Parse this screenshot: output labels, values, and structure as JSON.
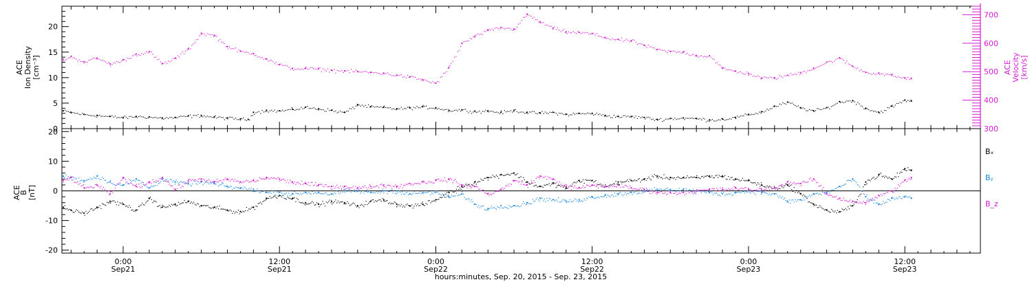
{
  "xaxis": {
    "title": "hours:minutes, Sep. 20, 2015 - Sep. 23, 2015",
    "ticks": [
      {
        "time": "0:00",
        "date": "Sep21",
        "hour": 24
      },
      {
        "time": "12:00",
        "date": "Sep21",
        "hour": 36
      },
      {
        "time": "0:00",
        "date": "Sep22",
        "hour": 48
      },
      {
        "time": "12:00",
        "date": "Sep22",
        "hour": 60
      },
      {
        "time": "0:00",
        "date": "Sep23",
        "hour": 72
      },
      {
        "time": "12:00",
        "date": "Sep23",
        "hour": 84
      }
    ],
    "range_hours": [
      19.3,
      89.8
    ]
  },
  "colors": {
    "black": "#000000",
    "magenta": "#d21ad2",
    "blue": "#1a86e0"
  },
  "chart_data": [
    {
      "type": "scatter",
      "panel": "top",
      "ylabel_left": [
        "ACE",
        "Ion Density",
        "[cm⁻³]"
      ],
      "ylabel_right": [
        "ACE",
        "Velocity",
        "[km/s]"
      ],
      "ylim_left": [
        0,
        24
      ],
      "yticks_left": [
        0,
        5,
        10,
        15,
        20
      ],
      "ylim_right": [
        300,
        730
      ],
      "yticks_right": [
        300,
        400,
        500,
        600,
        700
      ],
      "series": [
        {
          "axis": "left",
          "color": "black",
          "x": [
            19.4,
            20,
            21,
            22,
            23,
            24,
            25,
            26,
            27,
            28,
            29,
            30,
            31,
            32,
            33,
            33.6,
            34,
            35,
            36,
            37,
            38,
            39,
            40,
            41,
            42,
            43,
            44,
            45,
            46,
            47,
            48,
            49,
            50,
            51,
            52,
            53,
            54,
            55,
            56,
            57,
            58,
            59,
            60,
            61,
            62,
            63,
            64,
            65,
            66,
            67,
            68,
            69,
            70,
            71,
            72,
            73,
            74,
            75,
            76,
            77,
            78,
            79,
            80,
            81,
            82,
            83,
            84,
            84.5
          ],
          "y": [
            3.5,
            3.2,
            2.8,
            2.6,
            2.4,
            2.2,
            2.4,
            2.3,
            2.1,
            2.2,
            2.5,
            2.6,
            2.3,
            2.1,
            1.9,
            1.8,
            3.2,
            3.6,
            3.5,
            3.8,
            4.2,
            3.9,
            3.6,
            3.2,
            4.7,
            4.3,
            4.2,
            3.9,
            4.1,
            4.3,
            4.1,
            3.6,
            3.7,
            3.4,
            3.5,
            3.2,
            3.6,
            3.2,
            3.1,
            3.2,
            2.8,
            3.0,
            3.0,
            2.6,
            2.4,
            2.4,
            2.2,
            1.8,
            2.0,
            2.1,
            2.0,
            1.7,
            1.9,
            2.2,
            2.8,
            3.3,
            4.4,
            5.2,
            4.1,
            3.5,
            4.1,
            5.3,
            5.5,
            4.0,
            3.2,
            4.4,
            5.6,
            5.4
          ]
        },
        {
          "axis": "right",
          "color": "magenta",
          "x": [
            19.4,
            20,
            21,
            22,
            23,
            24,
            25,
            26,
            27,
            28,
            29,
            30,
            31,
            32,
            33,
            34,
            35,
            36,
            37,
            38,
            39,
            40,
            41,
            42,
            43,
            44,
            45,
            46,
            47,
            48,
            49,
            50,
            51,
            52,
            53,
            54,
            55,
            56,
            57,
            58,
            59,
            60,
            61,
            62,
            63,
            64,
            65,
            66,
            67,
            68,
            69,
            70,
            71,
            72,
            73,
            74,
            75,
            76,
            77,
            78,
            79,
            80,
            81,
            82,
            83,
            84,
            84.5
          ],
          "y": [
            543,
            553,
            535,
            548,
            527,
            541,
            562,
            570,
            528,
            548,
            580,
            635,
            628,
            588,
            572,
            563,
            545,
            525,
            511,
            512,
            510,
            505,
            503,
            501,
            498,
            495,
            488,
            482,
            472,
            460,
            515,
            600,
            625,
            645,
            655,
            650,
            702,
            675,
            653,
            640,
            638,
            634,
            620,
            613,
            609,
            593,
            578,
            571,
            569,
            557,
            556,
            512,
            502,
            494,
            478,
            479,
            488,
            497,
            513,
            533,
            548,
            519,
            498,
            495,
            488,
            478,
            477
          ]
        }
      ]
    },
    {
      "type": "scatter",
      "panel": "bottom",
      "ylabel_left": [
        "ACE",
        "B",
        "[nT]"
      ],
      "ylim": [
        -21,
        21
      ],
      "yticks": [
        -20,
        -10,
        0,
        10,
        20
      ],
      "zero_line": true,
      "legend": [
        "Bₓ",
        "Bᵧ",
        "B_z"
      ],
      "legend_placement": "right",
      "series": [
        {
          "name": "Bₓ",
          "color": "black",
          "x": [
            19.4,
            20,
            21,
            22,
            23,
            24,
            25,
            26,
            27,
            28,
            29,
            30,
            31,
            32,
            33,
            34,
            35,
            36,
            37,
            38,
            39,
            40,
            41,
            42,
            43,
            44,
            45,
            46,
            47,
            48,
            49,
            50,
            51,
            52,
            53,
            54,
            55,
            56,
            57,
            58,
            59,
            60,
            61,
            62,
            63,
            64,
            65,
            66,
            67,
            68,
            69,
            70,
            71,
            72,
            73,
            74,
            75,
            76,
            77,
            78,
            79,
            80,
            81,
            82,
            83,
            84,
            84.5
          ],
          "y": [
            -5.5,
            -6.5,
            -7.5,
            -5.5,
            -3.5,
            -4.5,
            -6.5,
            -2.5,
            -5.5,
            -4.5,
            -3.5,
            -5.0,
            -5.5,
            -6.5,
            -7.0,
            -5.5,
            -2.5,
            -1.5,
            -2.5,
            -4.0,
            -4.5,
            -3.5,
            -4.0,
            -5.0,
            -3.5,
            -3.0,
            -4.5,
            -5.0,
            -4.5,
            -3.0,
            -0.5,
            1.5,
            3.0,
            4.5,
            5.5,
            6.0,
            3.0,
            1.5,
            2.5,
            1.0,
            3.5,
            3.5,
            1.5,
            3.0,
            3.5,
            4.0,
            5.0,
            4.5,
            4.5,
            4.5,
            5.0,
            5.0,
            4.0,
            3.5,
            2.0,
            1.0,
            2.0,
            -1.0,
            -4.5,
            -6.5,
            -7.0,
            -5.0,
            3.0,
            5.5,
            4.0,
            7.5,
            7.0
          ]
        },
        {
          "name": "Bᵧ",
          "color": "blue",
          "x": [
            19.4,
            20,
            21,
            22,
            23,
            24,
            25,
            26,
            27,
            28,
            29,
            30,
            31,
            32,
            33,
            34,
            35,
            36,
            37,
            38,
            39,
            40,
            41,
            42,
            43,
            44,
            45,
            46,
            47,
            48,
            49,
            50,
            51,
            52,
            53,
            54,
            55,
            56,
            57,
            58,
            59,
            60,
            61,
            62,
            63,
            64,
            65,
            66,
            67,
            68,
            69,
            70,
            71,
            72,
            73,
            74,
            75,
            76,
            77,
            78,
            79,
            80,
            81,
            82,
            83,
            84,
            84.5
          ],
          "y": [
            5.0,
            4.5,
            3.5,
            5.0,
            3.0,
            2.0,
            4.0,
            1.0,
            4.0,
            3.0,
            2.5,
            3.0,
            2.5,
            1.5,
            1.0,
            0.5,
            -0.5,
            -0.5,
            -1.0,
            -0.5,
            -0.5,
            -1.0,
            0.0,
            0.0,
            -0.5,
            0.0,
            0.0,
            -1.0,
            -0.5,
            -0.5,
            -2.0,
            -1.0,
            -4.5,
            -6.0,
            -5.0,
            -5.0,
            -4.0,
            -2.5,
            -3.0,
            -3.5,
            -3.0,
            -2.0,
            -1.5,
            -1.0,
            -0.5,
            0.0,
            0.5,
            0.5,
            0.5,
            0.0,
            -0.5,
            -1.0,
            -0.5,
            0.0,
            -0.5,
            -1.0,
            -3.5,
            -3.0,
            -1.0,
            -0.5,
            1.5,
            4.0,
            -2.0,
            -4.5,
            -2.5,
            -2.0,
            -2.5
          ]
        },
        {
          "name": "B_z",
          "color": "magenta",
          "x": [
            19.4,
            20,
            21,
            22,
            23,
            24,
            25,
            26,
            27,
            28,
            29,
            30,
            31,
            32,
            33,
            34,
            35,
            36,
            37,
            38,
            39,
            40,
            41,
            42,
            43,
            44,
            45,
            46,
            47,
            48,
            49,
            50,
            51,
            52,
            53,
            54,
            55,
            56,
            57,
            58,
            59,
            60,
            61,
            62,
            63,
            64,
            65,
            66,
            67,
            68,
            69,
            70,
            71,
            72,
            73,
            74,
            75,
            76,
            77,
            78,
            79,
            80,
            81,
            82,
            83,
            84,
            84.5
          ],
          "y": [
            3.5,
            4.5,
            1.0,
            2.0,
            -1.0,
            4.5,
            1.5,
            3.0,
            4.5,
            0.5,
            3.5,
            4.0,
            3.0,
            4.0,
            3.0,
            3.5,
            4.5,
            4.0,
            3.0,
            2.5,
            2.0,
            1.5,
            1.5,
            1.0,
            1.5,
            2.0,
            1.5,
            2.5,
            3.0,
            3.5,
            4.0,
            2.0,
            1.5,
            -1.0,
            0.5,
            3.5,
            2.0,
            5.0,
            4.0,
            1.5,
            1.0,
            2.0,
            1.5,
            2.0,
            1.0,
            0.5,
            -0.5,
            -0.5,
            -0.5,
            0.0,
            0.5,
            0.5,
            1.0,
            0.5,
            0.5,
            1.0,
            3.0,
            2.5,
            4.0,
            -1.0,
            -2.5,
            -3.5,
            -4.0,
            -1.5,
            0.0,
            3.5,
            4.5
          ]
        }
      ]
    }
  ]
}
